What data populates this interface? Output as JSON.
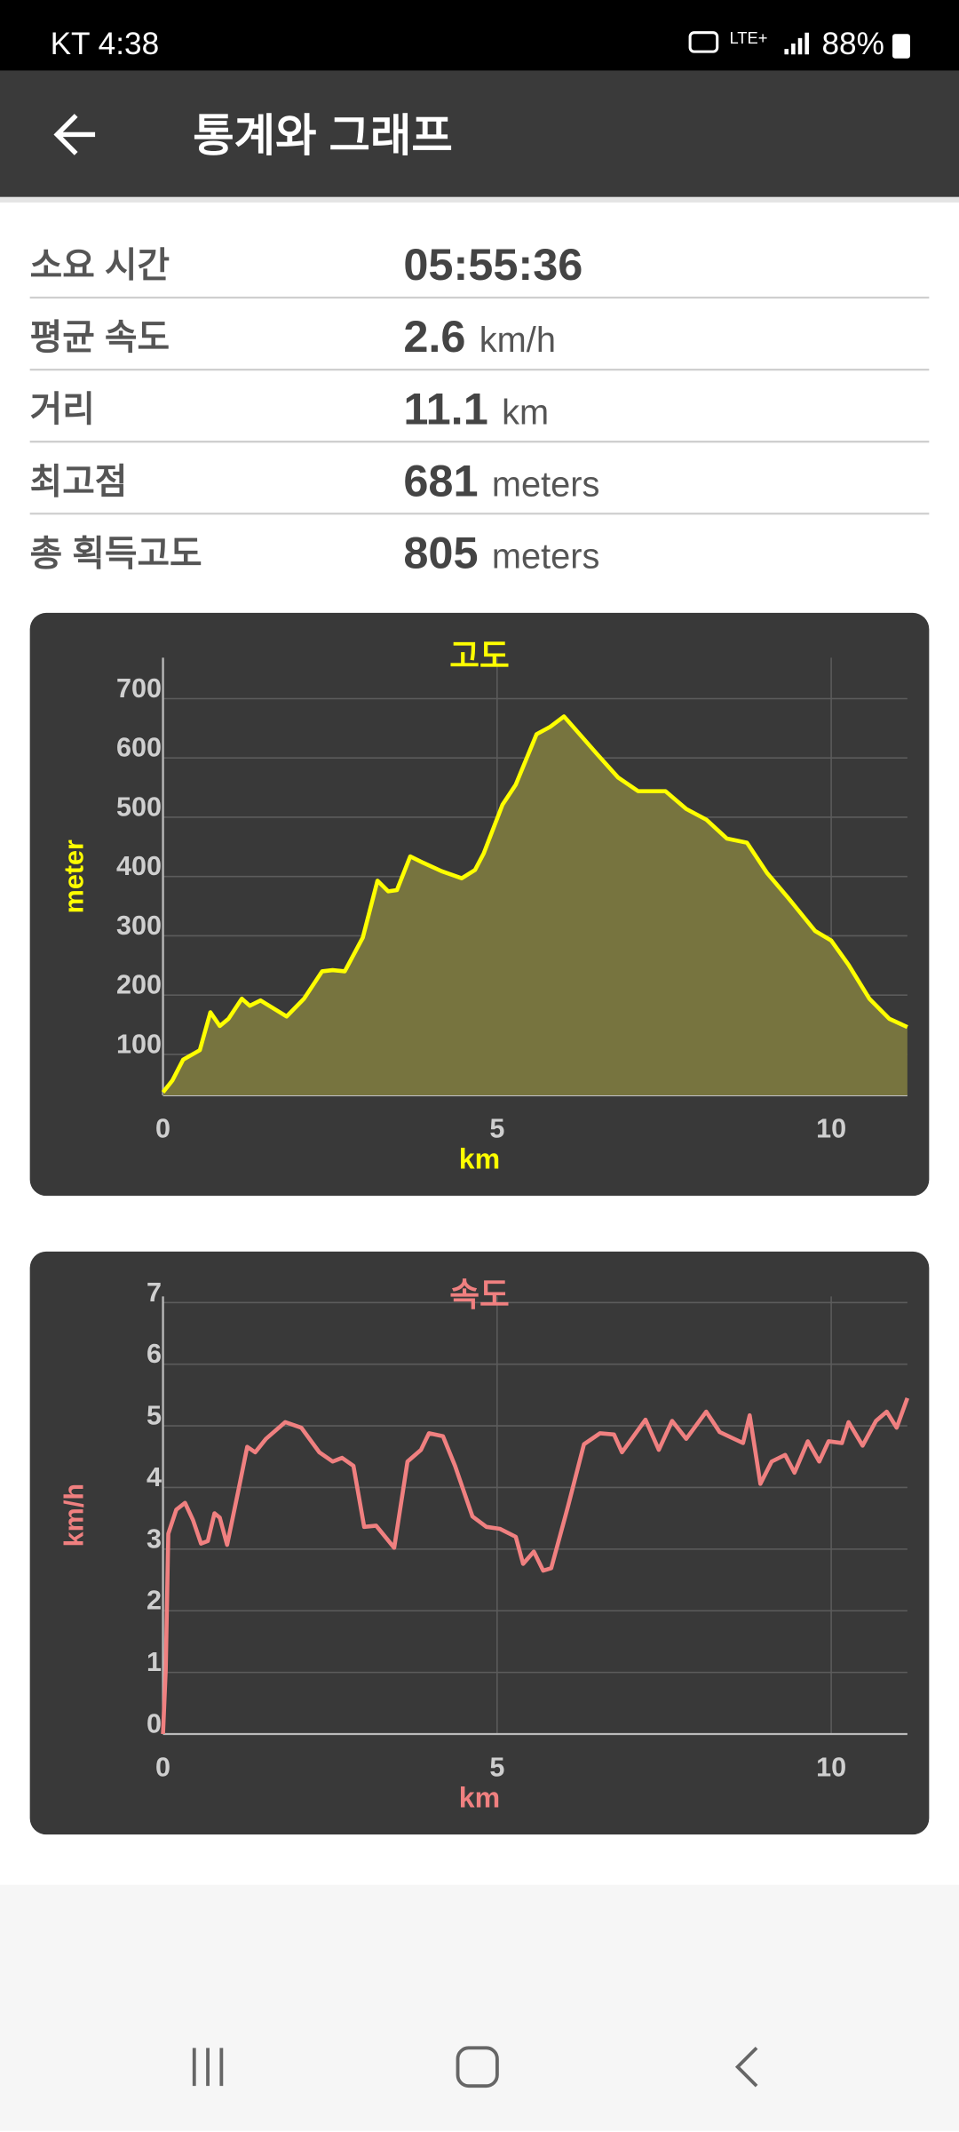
{
  "status_bar": {
    "carrier_time": "KT 4:38",
    "battery": "88%"
  },
  "app_bar": {
    "title": "통계와 그래프"
  },
  "stats": [
    {
      "label": "소요 시간",
      "value": "05:55:36"
    },
    {
      "label": "평균 속도",
      "value": 2.6,
      "unit": "km/h"
    },
    {
      "label": "거리",
      "value": 11.1,
      "unit": "km"
    },
    {
      "label": "최고점",
      "value": 681,
      "unit": "meters"
    },
    {
      "label": "총 획득고도",
      "value": 805,
      "unit": "meters"
    }
  ],
  "chart_data": [
    {
      "type": "area",
      "title": "고도",
      "x_label": "km",
      "y_label": "meter",
      "color": "#ffff00",
      "fill": "#77743f",
      "grid": true,
      "xlim": [
        0,
        11.14
      ],
      "ylim": [
        31,
        769
      ],
      "xticks": [
        0,
        5,
        10
      ],
      "yticks": [
        100,
        200,
        300,
        400,
        500,
        600,
        700
      ],
      "x": [
        0,
        0.14,
        0.3,
        0.55,
        0.71,
        0.85,
        0.98,
        1.18,
        1.3,
        1.46,
        1.85,
        2.11,
        2.38,
        2.54,
        2.72,
        2.99,
        3.21,
        3.37,
        3.5,
        3.7,
        3.9,
        4.17,
        4.47,
        4.67,
        4.8,
        5.08,
        5.28,
        5.59,
        5.79,
        6.0,
        6.18,
        6.5,
        6.81,
        7.11,
        7.52,
        7.83,
        8.13,
        8.44,
        8.74,
        9.04,
        9.35,
        9.76,
        10.0,
        10.26,
        10.57,
        10.87,
        11.14
      ],
      "values": [
        36,
        56,
        91,
        107,
        171,
        148,
        160,
        194,
        182,
        191,
        164,
        194,
        240,
        242,
        240,
        297,
        393,
        375,
        377,
        434,
        423,
        409,
        397,
        411,
        439,
        521,
        555,
        640,
        652,
        670,
        647,
        606,
        567,
        544,
        544,
        514,
        496,
        464,
        457,
        406,
        365,
        308,
        292,
        251,
        194,
        160,
        146
      ]
    },
    {
      "type": "line",
      "title": "속도",
      "x_label": "km",
      "y_label": "km/h",
      "color": "#f08080",
      "grid": true,
      "xlim": [
        0,
        11.14
      ],
      "ylim": [
        0,
        7.1
      ],
      "xticks": [
        0,
        5,
        10
      ],
      "yticks": [
        0,
        1,
        2,
        3,
        4,
        5,
        6,
        7
      ],
      "x": [
        0,
        0.04,
        0.08,
        0.2,
        0.33,
        0.45,
        0.57,
        0.67,
        0.77,
        0.85,
        0.96,
        1.12,
        1.26,
        1.38,
        1.54,
        1.83,
        2.07,
        2.34,
        2.54,
        2.68,
        2.85,
        3.01,
        3.19,
        3.46,
        3.66,
        3.86,
        3.98,
        4.19,
        4.37,
        4.63,
        4.84,
        5.04,
        5.28,
        5.39,
        5.55,
        5.69,
        5.81,
        6.06,
        6.3,
        6.54,
        6.75,
        6.87,
        7.22,
        7.42,
        7.62,
        7.83,
        8.13,
        8.33,
        8.68,
        8.78,
        8.94,
        9.11,
        9.31,
        9.45,
        9.65,
        9.82,
        9.96,
        10.16,
        10.26,
        10.47,
        10.67,
        10.83,
        10.98,
        11.14
      ],
      "values": [
        0,
        1.04,
        3.25,
        3.64,
        3.75,
        3.47,
        3.09,
        3.13,
        3.58,
        3.51,
        3.07,
        3.91,
        4.66,
        4.57,
        4.79,
        5.06,
        4.97,
        4.57,
        4.42,
        4.48,
        4.35,
        3.36,
        3.38,
        3.02,
        4.42,
        4.61,
        4.88,
        4.83,
        4.35,
        3.53,
        3.36,
        3.33,
        3.2,
        2.76,
        2.96,
        2.65,
        2.69,
        3.69,
        4.7,
        4.88,
        4.86,
        4.57,
        5.1,
        4.61,
        5.08,
        4.79,
        5.23,
        4.9,
        4.72,
        5.17,
        4.06,
        4.42,
        4.53,
        4.24,
        4.75,
        4.42,
        4.75,
        4.72,
        5.06,
        4.68,
        5.08,
        5.23,
        4.97,
        5.45
      ]
    }
  ]
}
